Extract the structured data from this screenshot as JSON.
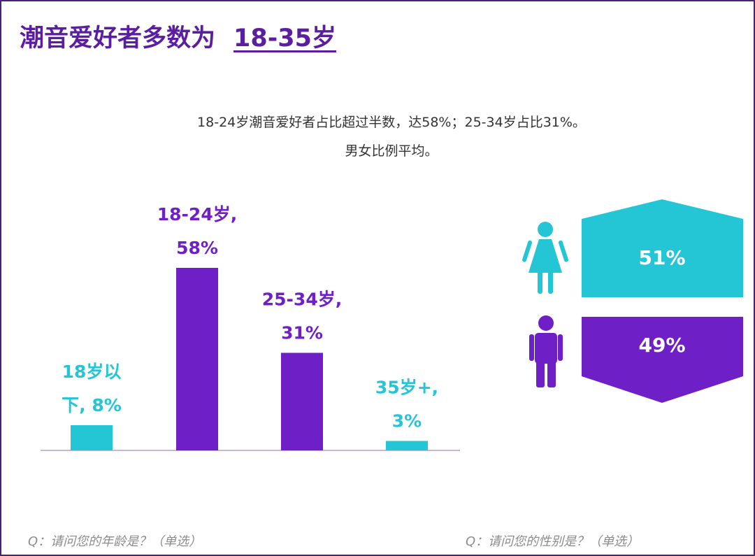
{
  "title": {
    "main": "潮音爱好者多数为",
    "range": "18-35岁"
  },
  "summary": {
    "line1": "18-24岁潮音爱好者占比超过半数，达58%；25-34岁占比31%。",
    "line2": "男女比例平均。"
  },
  "colors": {
    "purple": "#6f1fc6",
    "cyan": "#24c6d6",
    "title": "#5b1ea0",
    "axis": "#c8b6de"
  },
  "chart_data": [
    {
      "type": "bar",
      "title": "Q：请问您的年龄是？（单选）",
      "categories": [
        "18岁以下",
        "18-24岁",
        "25-34岁",
        "35岁+"
      ],
      "values": [
        8,
        58,
        31,
        3
      ],
      "unit": "%",
      "labels": [
        [
          "18岁以",
          "下, 8%"
        ],
        [
          "18-24岁,",
          "58%"
        ],
        [
          "25-34岁,",
          "31%"
        ],
        [
          "35岁+,",
          "3%"
        ]
      ],
      "bar_colors": [
        "#24c6d6",
        "#6f1fc6",
        "#6f1fc6",
        "#24c6d6"
      ],
      "ylim": [
        0,
        58
      ],
      "grid": false
    },
    {
      "type": "bar",
      "title": "Q：请问您的性别是？（单选）",
      "categories": [
        "女",
        "男"
      ],
      "values": [
        51,
        49
      ],
      "unit": "%",
      "labels": [
        "51%",
        "49%"
      ],
      "icons": [
        "female-icon",
        "male-icon"
      ],
      "bar_colors": [
        "#24c6d6",
        "#6f1fc6"
      ]
    }
  ],
  "questions": {
    "age": "Q：请问您的年龄是？（单选）",
    "gender": "Q：请问您的性别是？（单选）"
  }
}
